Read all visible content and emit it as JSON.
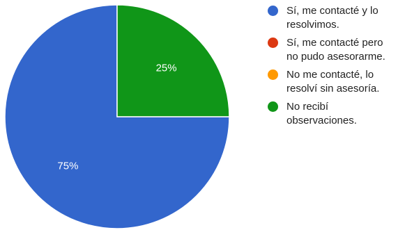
{
  "chart_data": {
    "type": "pie",
    "categories": [
      "Sí, me contacté y lo\nresolvimos.",
      "Sí, me contacté pero\nno pudo asesorarme.",
      "No me contacté, lo\nresolví sin asesoría.",
      "No recibí\nobservaciones."
    ],
    "values": [
      75,
      0,
      0,
      25
    ],
    "value_labels": [
      "75%",
      "",
      "",
      "25%"
    ],
    "colors": [
      "#3366cc",
      "#dc3912",
      "#ff9900",
      "#109618"
    ],
    "start_angle_deg": 0,
    "direction": "clockwise",
    "legend_position": "right"
  }
}
